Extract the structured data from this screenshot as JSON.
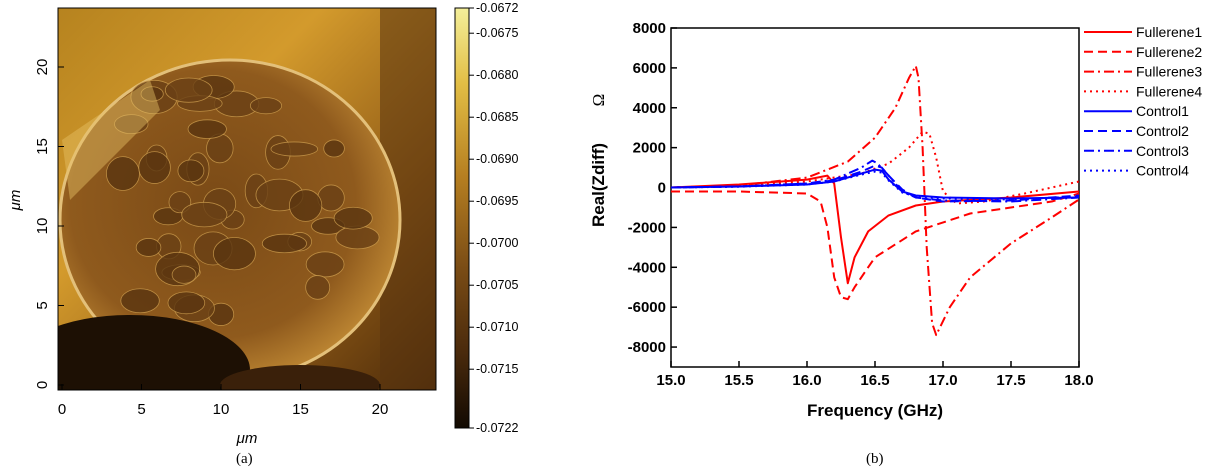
{
  "panel_a": {
    "caption": "(a)",
    "colors": {
      "dark": "#120a02",
      "mid_low": "#4a2a0c",
      "mid": "#7a4c15",
      "mid_high": "#b67f21",
      "light": "#e2be45",
      "top": "#f4ef9a"
    }
  },
  "panel_b": {
    "caption": "(b)"
  },
  "chart_data": [
    {
      "type": "heatmap",
      "description_units": "μm",
      "xlabel": "μm",
      "ylabel": "μm",
      "xlim": [
        0,
        25
      ],
      "ylim": [
        0,
        25
      ],
      "x_ticks": [
        0,
        5,
        10,
        15,
        20
      ],
      "y_ticks": [
        0,
        5,
        10,
        15,
        20
      ],
      "colorbar": {
        "min": -0.0722,
        "max": -0.0672,
        "ticks": [
          "-0.0672",
          "-0.0675",
          "-0.0680",
          "-0.0685",
          "-0.0690",
          "-0.0695",
          "-0.0700",
          "-0.0705",
          "-0.0710",
          "-0.0715",
          "-0.0722"
        ]
      }
    },
    {
      "type": "line",
      "xlabel": "Frequency (GHz)",
      "ylabel": "Real(Zdiff)",
      "ylabel_unit": "Ω",
      "xlim": [
        15.0,
        18.0
      ],
      "ylim": [
        -9000,
        8000
      ],
      "x_ticks": [
        "15.0",
        "15.5",
        "16.0",
        "16.5",
        "17.0",
        "17.5",
        "18.0"
      ],
      "y_ticks": [
        "8000",
        "6000",
        "4000",
        "2000",
        "0",
        "-2000",
        "-4000",
        "-6000",
        "-8000"
      ],
      "grid": false,
      "legend_position": "right",
      "series": [
        {
          "name": "Fullerene1",
          "color": "#ff0000",
          "dash": "solid",
          "x": [
            15.0,
            15.5,
            16.0,
            16.15,
            16.2,
            16.25,
            16.3,
            16.35,
            16.45,
            16.6,
            16.8,
            17.0,
            17.5,
            18.0
          ],
          "y": [
            0,
            150,
            400,
            600,
            200,
            -2500,
            -4800,
            -3500,
            -2200,
            -1400,
            -900,
            -700,
            -500,
            -200
          ]
        },
        {
          "name": "Fullerene2",
          "color": "#ff0000",
          "dash": "dash",
          "x": [
            15.0,
            15.5,
            16.0,
            16.1,
            16.15,
            16.2,
            16.25,
            16.3,
            16.35,
            16.5,
            16.8,
            17.2,
            17.8,
            18.0
          ],
          "y": [
            -200,
            -200,
            -300,
            -700,
            -2000,
            -4500,
            -5500,
            -5600,
            -5000,
            -3500,
            -2200,
            -1300,
            -700,
            -300
          ]
        },
        {
          "name": "Fullerene3",
          "color": "#ff0000",
          "dash": "dashdot",
          "x": [
            15.0,
            15.5,
            16.0,
            16.3,
            16.5,
            16.65,
            16.75,
            16.8,
            16.82,
            16.85,
            16.88,
            16.92,
            16.95,
            17.05,
            17.2,
            17.5,
            17.8,
            18.0
          ],
          "y": [
            0,
            100,
            500,
            1300,
            2500,
            4000,
            5500,
            6100,
            5500,
            2000,
            -3000,
            -6800,
            -7400,
            -6000,
            -4500,
            -2800,
            -1500,
            -600
          ]
        },
        {
          "name": "Fullerene4",
          "color": "#ff0000",
          "dash": "dot",
          "x": [
            15.0,
            15.5,
            16.0,
            16.4,
            16.6,
            16.75,
            16.85,
            16.9,
            16.95,
            17.0,
            17.1,
            17.3,
            17.6,
            18.0
          ],
          "y": [
            0,
            80,
            300,
            700,
            1200,
            2000,
            2800,
            2700,
            1500,
            -200,
            -800,
            -700,
            -300,
            300
          ]
        },
        {
          "name": "Control1",
          "color": "#0000ff",
          "dash": "solid",
          "x": [
            15.0,
            15.5,
            16.0,
            16.2,
            16.4,
            16.5,
            16.55,
            16.6,
            16.7,
            16.8,
            17.0,
            17.5,
            18.0
          ],
          "y": [
            0,
            50,
            150,
            300,
            700,
            900,
            850,
            400,
            -200,
            -400,
            -500,
            -550,
            -500
          ]
        },
        {
          "name": "Control2",
          "color": "#0000ff",
          "dash": "dash",
          "x": [
            15.0,
            15.5,
            16.0,
            16.2,
            16.4,
            16.5,
            16.55,
            16.6,
            16.7,
            16.8,
            17.0,
            17.5,
            18.0
          ],
          "y": [
            0,
            50,
            200,
            350,
            800,
            1100,
            1000,
            600,
            -100,
            -500,
            -700,
            -650,
            -400
          ]
        },
        {
          "name": "Control3",
          "color": "#0000ff",
          "dash": "dashdot",
          "x": [
            15.0,
            15.5,
            16.0,
            16.2,
            16.4,
            16.48,
            16.52,
            16.6,
            16.7,
            16.8,
            17.0,
            17.5,
            18.0
          ],
          "y": [
            0,
            50,
            200,
            400,
            1000,
            1350,
            1200,
            600,
            -200,
            -500,
            -650,
            -700,
            -500
          ]
        },
        {
          "name": "Control4",
          "color": "#0000ff",
          "dash": "dot",
          "x": [
            15.0,
            15.5,
            16.0,
            16.2,
            16.4,
            16.5,
            16.55,
            16.6,
            16.7,
            16.8,
            17.0,
            17.5,
            18.0
          ],
          "y": [
            0,
            40,
            150,
            300,
            650,
            800,
            750,
            350,
            -250,
            -450,
            -550,
            -600,
            -450
          ]
        }
      ]
    }
  ]
}
